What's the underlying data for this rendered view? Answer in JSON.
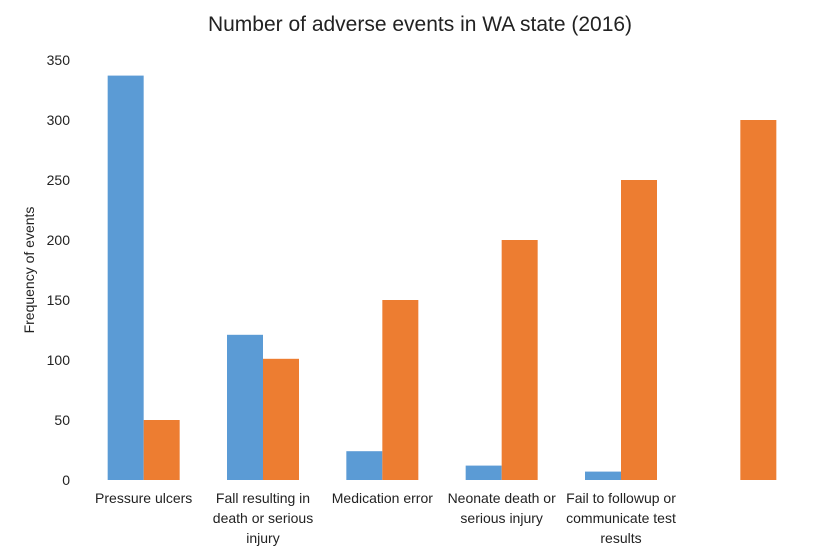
{
  "chart_data": {
    "type": "bar",
    "title": "Number of adverse events in WA state (2016)",
    "xlabel": "",
    "ylabel": "Frequency of events",
    "ylim": [
      0,
      350
    ],
    "yticks": [
      0,
      50,
      100,
      150,
      200,
      250,
      300,
      350
    ],
    "grid": false,
    "legend": "none",
    "categories": [
      "Pressure ulcers",
      "Fall resulting in death or serious injury",
      "Medication error",
      "Neonate death or serious injury",
      "Fail to followup or communicate test results",
      ""
    ],
    "category_lines": [
      [
        "Pressure ulcers"
      ],
      [
        "Fall resulting in",
        "death or serious",
        "injury"
      ],
      [
        "Medication error"
      ],
      [
        "Neonate death or",
        "serious injury"
      ],
      [
        "Fail to followup or",
        "communicate test",
        "results"
      ],
      []
    ],
    "series": [
      {
        "color": "#5b9bd5",
        "values": [
          337,
          121,
          24,
          12,
          7,
          null
        ]
      },
      {
        "color": "#ed7d31",
        "values": [
          50,
          101,
          150,
          200,
          250,
          300
        ]
      }
    ]
  }
}
